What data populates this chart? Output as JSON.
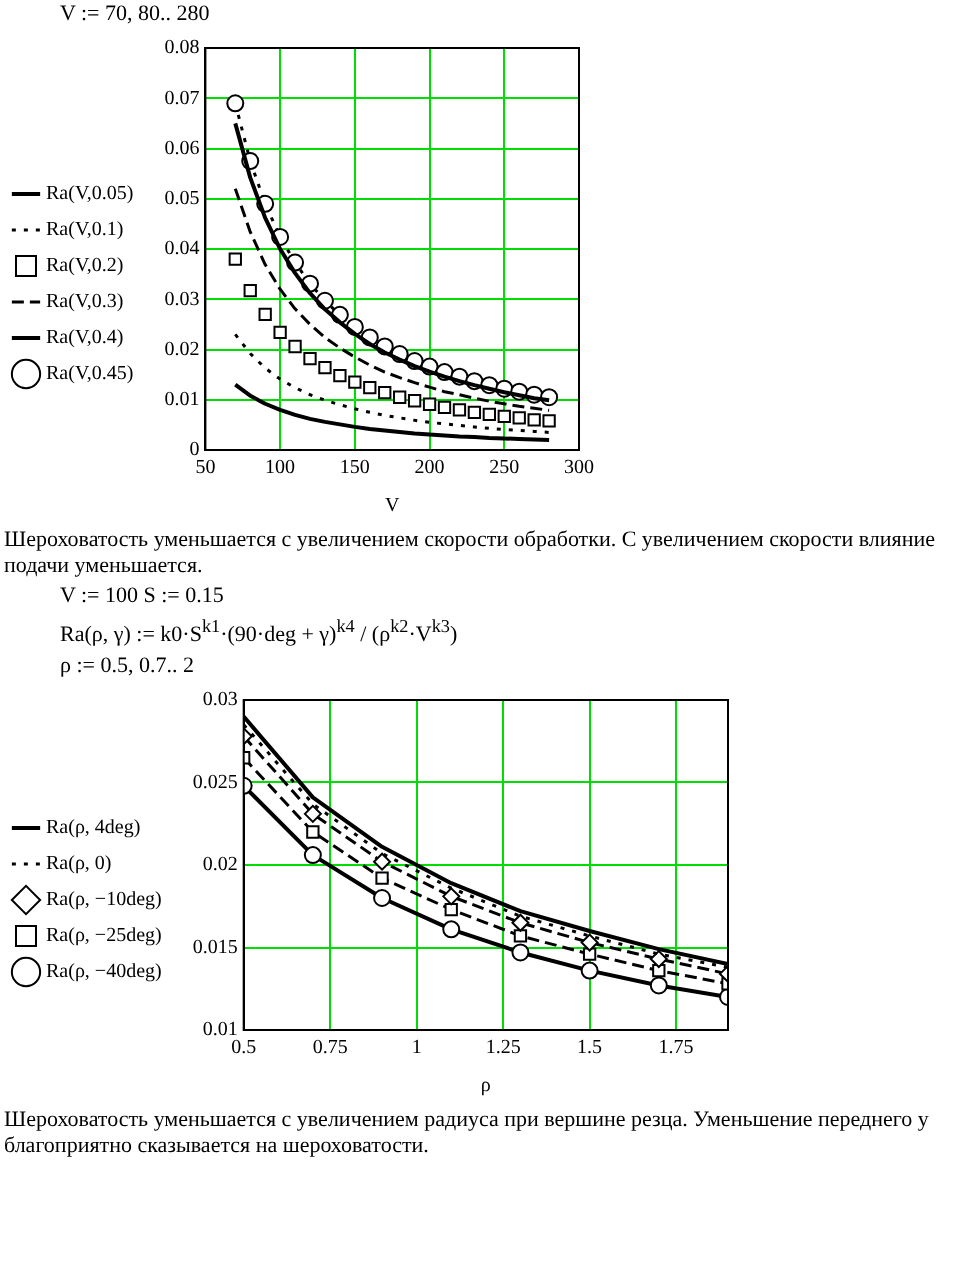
{
  "chart_data": [
    {
      "type": "line",
      "xlabel": "V",
      "x": [
        70,
        80,
        90,
        100,
        110,
        120,
        130,
        140,
        150,
        160,
        170,
        180,
        190,
        200,
        210,
        220,
        230,
        240,
        250,
        260,
        270,
        280
      ],
      "xlim": [
        50,
        300
      ],
      "xticks": [
        50,
        100,
        150,
        200,
        250,
        300
      ],
      "ylim": [
        0,
        0.08
      ],
      "yticks": [
        0,
        0.01,
        0.02,
        0.03,
        0.04,
        0.05,
        0.06,
        0.07,
        0.08
      ],
      "grid": true,
      "legend": "left",
      "annotations": [
        "V := 70, 80.. 280",
        "Шероховатость уменьшается с увеличением скорости обработки. С увеличением скорости влияние подачи уменьшается."
      ],
      "series": [
        {
          "name": "Ra(V,0.05)",
          "color": "#000000",
          "line_style": "solid",
          "marker": "none",
          "values": [
            0.013,
            0.0108,
            0.0092,
            0.008,
            0.007,
            0.0062,
            0.0056,
            0.0051,
            0.0046,
            0.0042,
            0.0039,
            0.0036,
            0.0033,
            0.0031,
            0.0029,
            0.0027,
            0.0026,
            0.0024,
            0.0023,
            0.0022,
            0.0021,
            0.002
          ]
        },
        {
          "name": "Ra(V,0.1)",
          "color": "#000000",
          "line_style": "dotted",
          "marker": "none",
          "values": [
            0.023,
            0.0192,
            0.0163,
            0.0141,
            0.0124,
            0.011,
            0.0099,
            0.009,
            0.0082,
            0.0075,
            0.0069,
            0.0064,
            0.0059,
            0.0055,
            0.0052,
            0.0049,
            0.0046,
            0.0043,
            0.0041,
            0.0039,
            0.0037,
            0.0035
          ]
        },
        {
          "name": "Ra(V,0.2)",
          "type": "scatter",
          "color": "#000000",
          "marker": "square",
          "values": [
            0.038,
            0.0317,
            0.027,
            0.0234,
            0.0206,
            0.0182,
            0.0164,
            0.0148,
            0.0135,
            0.0124,
            0.0114,
            0.0105,
            0.0098,
            0.0091,
            0.0085,
            0.008,
            0.0075,
            0.0071,
            0.0067,
            0.0064,
            0.006,
            0.0058
          ]
        },
        {
          "name": "Ra(V,0.3)",
          "color": "#000000",
          "line_style": "dashed",
          "marker": "none",
          "values": [
            0.052,
            0.0434,
            0.0369,
            0.032,
            0.0281,
            0.025,
            0.0224,
            0.0203,
            0.0185,
            0.0169,
            0.0155,
            0.0144,
            0.0134,
            0.0125,
            0.0116,
            0.011,
            0.0103,
            0.0097,
            0.0092,
            0.0087,
            0.0083,
            0.0079
          ]
        },
        {
          "name": "Ra(V,0.4)",
          "color": "#000000",
          "line_style": "solid",
          "marker": "none",
          "values": [
            0.065,
            0.0542,
            0.0462,
            0.04,
            0.0352,
            0.0312,
            0.028,
            0.0254,
            0.0231,
            0.0211,
            0.0194,
            0.018,
            0.0167,
            0.0156,
            0.0146,
            0.0137,
            0.0129,
            0.0122,
            0.0115,
            0.0109,
            0.0103,
            0.0099
          ]
        },
        {
          "name": "Ra(V,0.45)",
          "color": "#000000",
          "line_style": "dotted",
          "marker": "circle",
          "values": [
            0.069,
            0.0575,
            0.049,
            0.0424,
            0.0373,
            0.0331,
            0.0297,
            0.0269,
            0.0245,
            0.0224,
            0.0206,
            0.0191,
            0.0177,
            0.0166,
            0.0155,
            0.0146,
            0.0137,
            0.0129,
            0.0122,
            0.0116,
            0.011,
            0.0105
          ]
        }
      ]
    },
    {
      "type": "line",
      "xlabel": "ρ",
      "x": [
        0.5,
        0.7,
        0.9,
        1.1,
        1.3,
        1.5,
        1.7,
        1.9
      ],
      "xlim": [
        0.5,
        1.9
      ],
      "xticks": [
        0.5,
        0.75,
        1,
        1.25,
        1.5,
        1.75
      ],
      "ylim": [
        0.01,
        0.03
      ],
      "yticks": [
        0.01,
        0.015,
        0.02,
        0.025,
        0.03
      ],
      "grid": true,
      "legend": "left",
      "annotations": [
        "V := 100     S := 0.15",
        "Ra(ρ, γ) := k0·S$^{k1}$·(90·deg + γ)$^{k4}$ / (ρ$^{k2}$·V$^{k3}$)",
        "ρ := 0.5, 0.7.. 2",
        "Шероховатость уменьшается с увеличением радиуса при вершине резца. Уменьшение переднего у благоприятно сказывается на шероховатости."
      ],
      "series": [
        {
          "name": "Ra(ρ, 4deg)",
          "color": "#000000",
          "line_style": "solid",
          "marker": "none",
          "values": [
            0.029,
            0.0241,
            0.0211,
            0.0189,
            0.0172,
            0.016,
            0.0149,
            0.014
          ]
        },
        {
          "name": "Ra(ρ, 0)",
          "color": "#000000",
          "line_style": "dotted",
          "marker": "none",
          "values": [
            0.0285,
            0.0237,
            0.0207,
            0.0186,
            0.0169,
            0.0157,
            0.0146,
            0.0138
          ]
        },
        {
          "name": "Ra(ρ, −10deg)",
          "color": "#000000",
          "line_style": "dashed",
          "marker": "diamond",
          "values": [
            0.0278,
            0.0231,
            0.0202,
            0.0181,
            0.0165,
            0.0153,
            0.0143,
            0.0134
          ]
        },
        {
          "name": "Ra(ρ, −25deg)",
          "color": "#000000",
          "line_style": "dashed",
          "marker": "square",
          "values": [
            0.0265,
            0.022,
            0.0192,
            0.0173,
            0.0157,
            0.0146,
            0.0136,
            0.0128
          ]
        },
        {
          "name": "Ra(ρ, −40deg)",
          "color": "#000000",
          "line_style": "solid",
          "marker": "circle",
          "values": [
            0.0248,
            0.0206,
            0.018,
            0.0161,
            0.0147,
            0.0136,
            0.0127,
            0.012
          ]
        }
      ]
    }
  ]
}
